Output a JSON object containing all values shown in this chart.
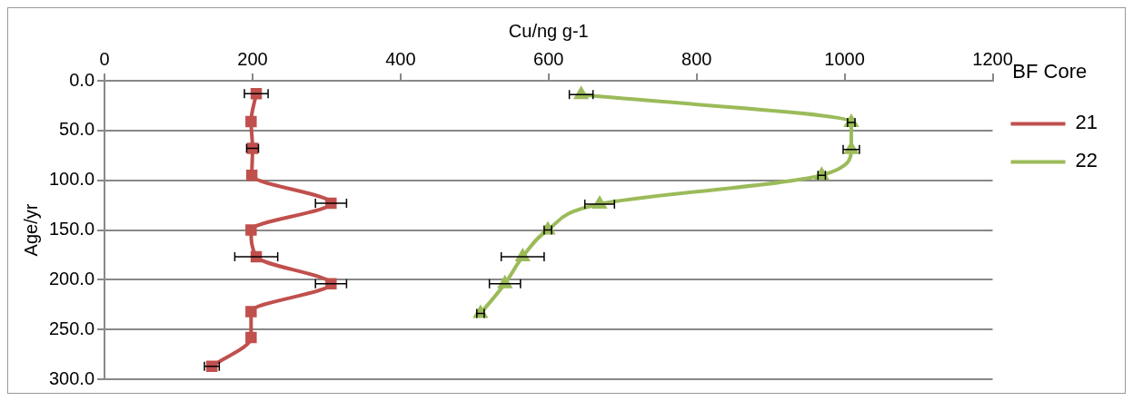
{
  "chart_data": {
    "type": "line",
    "xlabel": "Cu/ng g-1",
    "ylabel": "Age/yr",
    "legend_title": "BF Core",
    "legend": "right",
    "grid": "y",
    "line_style": "solid",
    "xlim": [
      0,
      1200
    ],
    "xticks": [
      0,
      200,
      400,
      600,
      800,
      1000,
      1200
    ],
    "ylim": [
      300,
      0
    ],
    "yticks": [
      {
        "value": 0,
        "label": "0.0"
      },
      {
        "value": 50,
        "label": "50.0"
      },
      {
        "value": 100,
        "label": "100.0"
      },
      {
        "value": 150,
        "label": "150.0"
      },
      {
        "value": 200,
        "label": "200.0"
      },
      {
        "value": 250,
        "label": "250.0"
      },
      {
        "value": 300,
        "label": "300.0"
      }
    ],
    "series": [
      {
        "name": "21",
        "color": "#c0504d",
        "marker": "square",
        "x": [
          205,
          198,
          200,
          199,
          306,
          198,
          205,
          306,
          198,
          198,
          145
        ],
        "values": [
          13,
          41,
          68,
          95,
          123,
          150,
          177,
          204,
          232,
          258,
          287
        ],
        "xerrors": [
          16,
          null,
          8,
          null,
          21,
          null,
          29,
          21,
          null,
          null,
          10
        ]
      },
      {
        "name": "22",
        "color": "#9bbb59",
        "marker": "triangle",
        "x": [
          644,
          1009,
          1009,
          969,
          669,
          599,
          565,
          541,
          508
        ],
        "values": [
          14,
          42,
          69,
          95,
          124,
          150,
          177,
          204,
          234
        ],
        "xerrors": [
          16,
          5,
          11,
          5,
          20,
          5,
          29,
          21,
          5
        ]
      }
    ]
  }
}
